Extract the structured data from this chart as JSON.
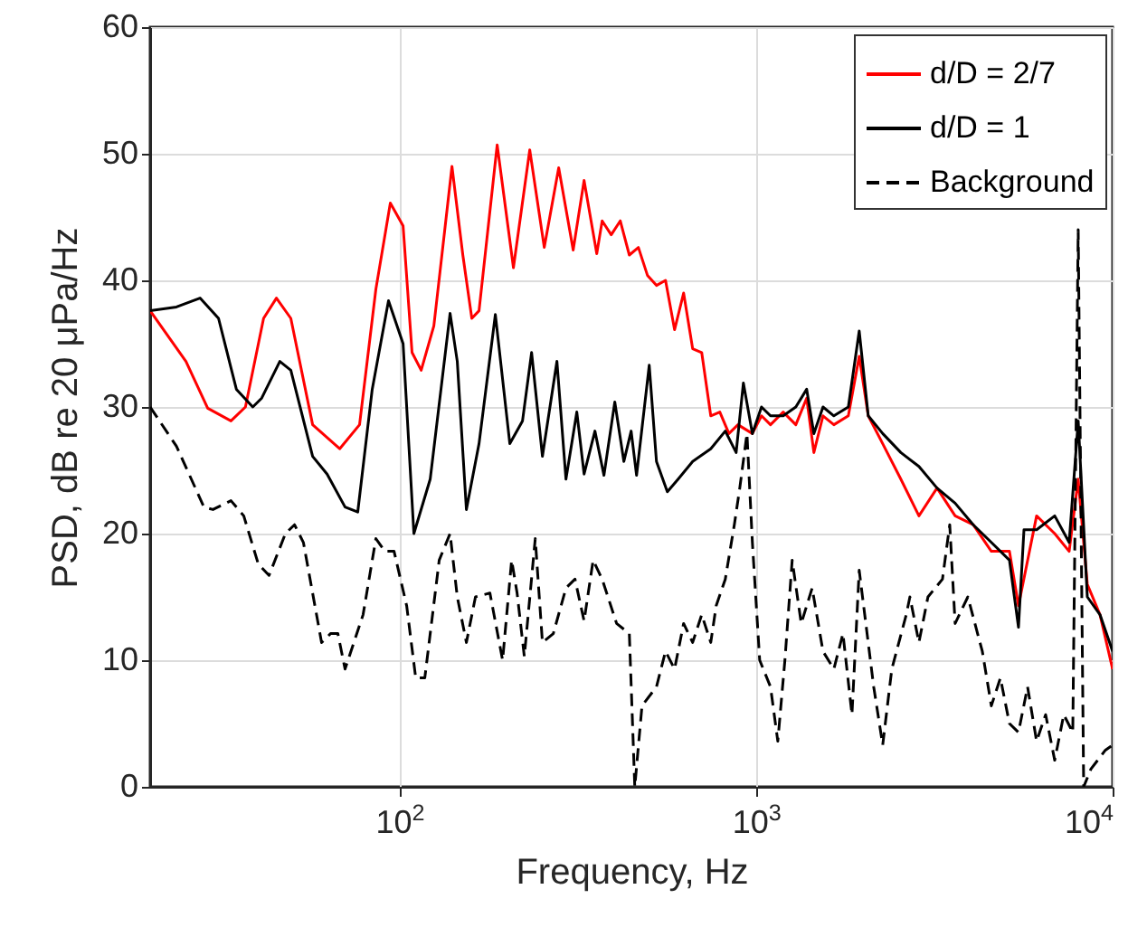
{
  "chart_data": {
    "type": "line",
    "xlabel": "Frequency, Hz",
    "ylabel": "PSD, dB re 20 μPa/Hz",
    "log": "x",
    "grid": true,
    "legend": "top right",
    "xlim": [
      20,
      10000
    ],
    "xticks": [
      {
        "value": 100,
        "label": "10$^{2}$"
      },
      {
        "value": 1000,
        "label": "10$^{3}$"
      },
      {
        "value": 10000,
        "label": "10$^{4}$"
      }
    ],
    "ylim": [
      0,
      60
    ],
    "yticks": [
      0,
      10,
      20,
      30,
      40,
      50,
      60
    ],
    "series": [
      {
        "name": "d/D = 2/7",
        "color": "#ff0000",
        "line_style": "solid",
        "x": [
          20,
          25.2,
          29.0,
          33.7,
          37.0,
          41.6,
          45.2,
          49.6,
          57.1,
          68.0,
          77.3,
          85.9,
          94.3,
          102.4,
          108.5,
          115.1,
          124.9,
          140.4,
          150.6,
          159.6,
          167.2,
          188.0,
          208.8,
          232.0,
          254.8,
          279.7,
          307.1,
          329.5,
          357.6,
          370.3,
          392.6,
          416.2,
          441.3,
          467.9,
          496.0,
          525.8,
          557.5,
          591.0,
          626.6,
          664.2,
          704.2,
          746.6,
          791.6,
          839.4,
          889.8,
          976.8,
          1036,
          1098,
          1192,
          1293,
          1387,
          1453,
          1541,
          1653,
          1815,
          1947,
          2064,
          2266,
          2547,
          2863,
          3218,
          3617,
          4065,
          4570,
          5136,
          5445,
          6121,
          6880,
          7553,
          8007,
          8492,
          9215,
          10000
        ],
        "values": [
          37.6,
          33.6,
          29.9,
          28.9,
          30,
          37,
          38.6,
          37,
          28.6,
          26.7,
          28.6,
          39.3,
          46.1,
          44.3,
          34.3,
          32.9,
          36.4,
          49,
          42,
          37,
          37.6,
          50.7,
          41,
          50.3,
          42.6,
          48.9,
          42.4,
          47.9,
          42.1,
          44.7,
          43.6,
          44.7,
          42,
          42.6,
          40.4,
          39.6,
          40,
          36.1,
          39,
          34.6,
          34.3,
          29.3,
          29.6,
          27.9,
          28.6,
          27.9,
          29.3,
          28.6,
          29.6,
          28.6,
          30.7,
          26.4,
          29.3,
          28.6,
          29.3,
          34,
          29.3,
          27.1,
          24.3,
          21.4,
          23.6,
          21.4,
          20.7,
          18.6,
          18.6,
          14.3,
          21.4,
          20,
          18.6,
          24.3,
          16,
          13.6,
          9.3
        ]
      },
      {
        "name": "d/D = 1",
        "color": "#000000",
        "line_style": "solid",
        "x": [
          20,
          23.7,
          27.6,
          31.1,
          34.9,
          38.8,
          41.1,
          46.2,
          49.6,
          57.1,
          62.7,
          70.4,
          76.4,
          83.9,
          93.2,
          102.4,
          109.8,
          122.0,
          138.7,
          145.3,
          154.1,
          167.2,
          185.8,
          204.0,
          221.4,
          234.8,
          251.8,
          276.5,
          293.1,
          314.4,
          329.5,
          353.4,
          374.6,
          401.8,
          426.0,
          446.5,
          462.4,
          501.8,
          525.8,
          564.1,
          604.9,
          664.2,
          746.6,
          820.0,
          879.6,
          921.7,
          976.8,
          1036,
          1098,
          1192,
          1293,
          1387,
          1453,
          1541,
          1653,
          1815,
          1947,
          2064,
          2266,
          2547,
          2863,
          3218,
          3617,
          4065,
          4570,
          5136,
          5445,
          5641,
          6121,
          6880,
          7553,
          8007,
          8492,
          9215,
          10000
        ],
        "values": [
          37.6,
          37.9,
          38.6,
          37,
          31.4,
          30,
          30.7,
          33.6,
          32.9,
          26.1,
          24.7,
          22.1,
          21.7,
          31.4,
          38.4,
          35,
          20,
          24.3,
          37.4,
          33.6,
          21.9,
          27.1,
          37.3,
          27.1,
          28.9,
          34.3,
          26.1,
          33.6,
          24.3,
          29.6,
          24.7,
          28.1,
          24.6,
          30.4,
          25.7,
          28.1,
          24.6,
          33.3,
          25.7,
          23.3,
          24.3,
          25.7,
          26.7,
          28.1,
          26.4,
          31.9,
          27.9,
          30,
          29.3,
          29.3,
          30,
          31.4,
          27.9,
          30,
          29.3,
          30,
          36,
          29.3,
          27.9,
          26.4,
          25.3,
          23.6,
          22.4,
          20.7,
          19.3,
          17.9,
          12.6,
          20.3,
          20.3,
          21.4,
          19.3,
          28.9,
          15,
          13.6,
          10.7
        ]
      },
      {
        "name": "Background",
        "color": "#000000",
        "line_style": "dashed",
        "x": [
          20,
          23.7,
          28.3,
          30.0,
          33.7,
          36.6,
          40.2,
          43.1,
          47.9,
          50.8,
          53.8,
          60.5,
          64.1,
          67.2,
          70.4,
          79.1,
          85.9,
          91.1,
          96.6,
          104.8,
          111.1,
          117.8,
          129.3,
          138.7,
          145.3,
          154.1,
          163.4,
          179.4,
          194.7,
          206.4,
          213.8,
          224.0,
          240.4,
          251.8,
          270.1,
          293.1,
          310.7,
          329.5,
          349.3,
          370.3,
          406.5,
          441.3,
          457.1,
          478.9,
          525.8,
          557.5,
          591.0,
          626.6,
          664.2,
          704.2,
          746.6,
          773.2,
          820.0,
          869.3,
          900.4,
          943.2,
          976.8,
          1024,
          1098,
          1151,
          1205,
          1263,
          1339,
          1437,
          1541,
          1653,
          1753,
          1858,
          1947,
          2138,
          2266,
          2403,
          2638,
          2701,
          2863,
          3035,
          3333,
          3493,
          3617,
          3926,
          4311,
          4570,
          4845,
          5136,
          5445,
          5774,
          6121,
          6489,
          6880,
          7294,
          7731,
          8007,
          8295,
          8690,
          9544,
          10000
        ],
        "values": [
          30,
          26.9,
          22.1,
          21.9,
          22.6,
          21.4,
          17.6,
          16.7,
          20,
          20.7,
          19.3,
          11.4,
          12.1,
          12.1,
          9.3,
          13.6,
          19.6,
          18.6,
          18.6,
          14.3,
          8.6,
          8.6,
          17.9,
          20,
          15,
          11.4,
          15,
          15.3,
          10,
          17.9,
          15.3,
          10.3,
          19.6,
          11.4,
          12.1,
          15.7,
          16.4,
          13.1,
          17.9,
          16.4,
          12.9,
          12.1,
          0,
          6.4,
          7.9,
          10.7,
          9.3,
          12.9,
          11.4,
          13.6,
          11.4,
          14.3,
          16.4,
          20.7,
          23.6,
          27.9,
          19.3,
          10,
          7.9,
          3.6,
          10,
          17.9,
          12.9,
          15.7,
          10.7,
          9.3,
          12.1,
          5.7,
          17.1,
          7.9,
          3.3,
          9.3,
          13.6,
          15,
          11.4,
          15,
          16.4,
          20.7,
          12.9,
          15,
          10.7,
          6.4,
          8.6,
          5,
          4.3,
          7.9,
          3.6,
          5.7,
          2.1,
          5.7,
          4.3,
          44,
          0,
          1.4,
          2.9,
          3.3
        ]
      }
    ]
  }
}
